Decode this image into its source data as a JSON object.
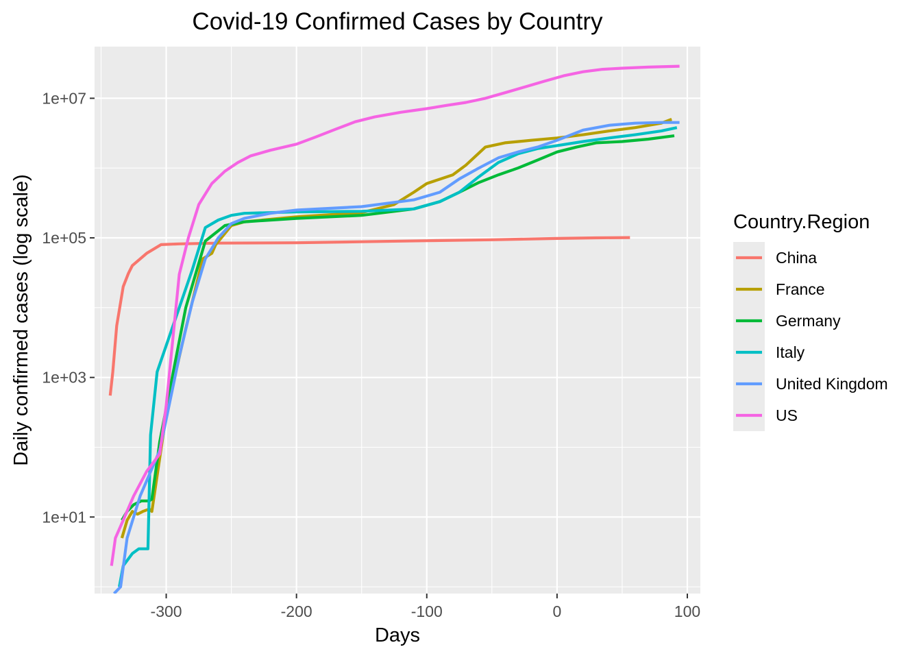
{
  "chart_data": {
    "type": "line",
    "title": "Covid-19 Confirmed Cases by Country",
    "xlabel": "Days",
    "ylabel": "Daily confirmed cases (log scale)",
    "xlim": [
      -355,
      110
    ],
    "ylim": [
      0.8,
      55000000
    ],
    "y_scale": "log10",
    "grid": true,
    "x_ticks": [
      -300,
      -200,
      -100,
      0,
      100
    ],
    "x_tick_labels": [
      "-300",
      "-200",
      "-100",
      "0",
      "100"
    ],
    "y_ticks": [
      10,
      1000,
      100000,
      10000000
    ],
    "y_tick_labels": [
      "1e+01",
      "1e+03",
      "1e+05",
      "1e+07"
    ],
    "legend": {
      "title": "Country.Region",
      "position": "right"
    },
    "series": [
      {
        "name": "China",
        "color": "#F8766D",
        "x": [
          -343,
          -341,
          -338,
          -333,
          -329,
          -326,
          -315,
          -304,
          -290,
          -260,
          -200,
          -150,
          -100,
          -50,
          0,
          30,
          56
        ],
        "y": [
          550,
          1200,
          5500,
          20000,
          31000,
          40000,
          60000,
          80000,
          82000,
          84000,
          85000,
          88000,
          91000,
          94000,
          98000,
          100000,
          101000
        ]
      },
      {
        "name": "France",
        "color": "#B79F00",
        "x": [
          -334,
          -330,
          -326,
          -322,
          -318,
          -313,
          -311,
          -300,
          -285,
          -272,
          -265,
          -262,
          -250,
          -240,
          -200,
          -150,
          -125,
          -110,
          -100,
          -80,
          -70,
          -55,
          -40,
          -20,
          0,
          20,
          40,
          60,
          80,
          88
        ],
        "y": [
          5,
          9,
          12,
          11,
          12,
          13,
          12,
          300,
          5000,
          50000,
          60000,
          80000,
          150000,
          170000,
          200000,
          230000,
          300000,
          450000,
          600000,
          800000,
          1100000,
          2000000,
          2300000,
          2500000,
          2700000,
          3000000,
          3400000,
          3800000,
          4400000,
          5000000
        ]
      },
      {
        "name": "Germany",
        "color": "#00BA38",
        "x": [
          -334,
          -330,
          -325,
          -319,
          -316,
          -313,
          -311,
          -305,
          -285,
          -270,
          -255,
          -240,
          -200,
          -150,
          -110,
          -90,
          -75,
          -60,
          -45,
          -30,
          -15,
          0,
          15,
          30,
          50,
          70,
          90
        ],
        "y": [
          9,
          12,
          15,
          17,
          17,
          17,
          18,
          120,
          10000,
          90000,
          150000,
          170000,
          190000,
          210000,
          260000,
          330000,
          450000,
          620000,
          800000,
          1000000,
          1300000,
          1700000,
          2000000,
          2300000,
          2400000,
          2600000,
          2900000
        ]
      },
      {
        "name": "Italy",
        "color": "#00BFC4",
        "x": [
          -336,
          -333,
          -326,
          -321,
          -316,
          -314,
          -312,
          -307,
          -290,
          -280,
          -270,
          -260,
          -250,
          -240,
          -200,
          -150,
          -110,
          -90,
          -75,
          -60,
          -45,
          -30,
          -15,
          0,
          20,
          40,
          60,
          80,
          92
        ],
        "y": [
          1,
          2,
          3,
          3.5,
          3.5,
          3.5,
          150,
          1200,
          10000,
          35000,
          140000,
          180000,
          210000,
          225000,
          235000,
          240000,
          260000,
          330000,
          450000,
          750000,
          1200000,
          1600000,
          1900000,
          2100000,
          2400000,
          2700000,
          3000000,
          3400000,
          3800000
        ]
      },
      {
        "name": "United Kingdom",
        "color": "#619CFF",
        "x": [
          -340,
          -335,
          -330,
          -320,
          -305,
          -290,
          -280,
          -270,
          -260,
          -250,
          -240,
          -220,
          -200,
          -150,
          -110,
          -90,
          -75,
          -60,
          -45,
          -30,
          -15,
          0,
          20,
          40,
          60,
          80,
          94
        ],
        "y": [
          0.8,
          1,
          5,
          20,
          90,
          2000,
          12000,
          50000,
          100000,
          160000,
          190000,
          225000,
          250000,
          280000,
          350000,
          450000,
          700000,
          1000000,
          1400000,
          1700000,
          2000000,
          2500000,
          3500000,
          4100000,
          4400000,
          4500000,
          4500000
        ]
      },
      {
        "name": "US",
        "color": "#F564E3",
        "x": [
          -342,
          -339,
          -333,
          -325,
          -315,
          -305,
          -300,
          -290,
          -283,
          -275,
          -265,
          -255,
          -245,
          -235,
          -220,
          -200,
          -185,
          -170,
          -155,
          -140,
          -120,
          -100,
          -85,
          -70,
          -55,
          -40,
          -25,
          -10,
          5,
          20,
          35,
          50,
          70,
          94
        ],
        "y": [
          2,
          5,
          9,
          20,
          45,
          80,
          400,
          30000,
          100000,
          300000,
          600000,
          900000,
          1200000,
          1500000,
          1800000,
          2200000,
          2800000,
          3600000,
          4600000,
          5400000,
          6300000,
          7100000,
          7900000,
          8700000,
          10000000,
          12000000,
          14500000,
          17500000,
          21000000,
          24000000,
          26000000,
          27000000,
          28000000,
          28800000
        ]
      }
    ]
  }
}
